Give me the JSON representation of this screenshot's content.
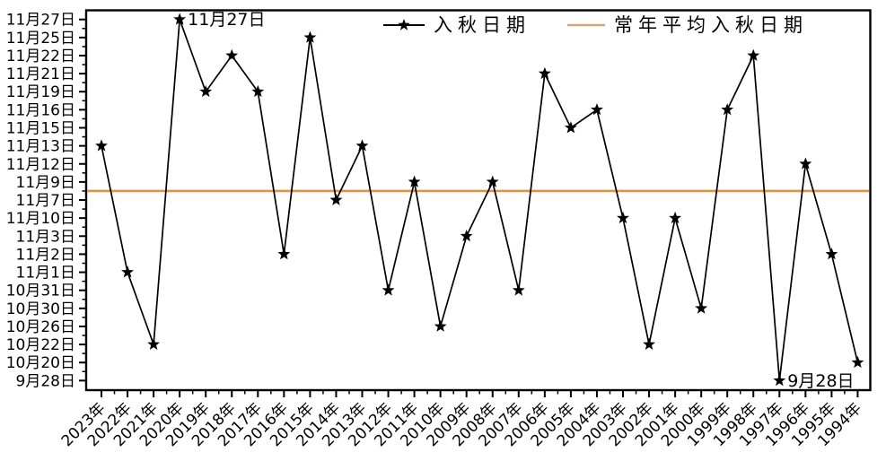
{
  "chart_data": {
    "type": "line",
    "title": "",
    "grid": false,
    "frame": true,
    "x_tick_label_rotation_deg": -45,
    "categories": [
      "2023年",
      "2022年",
      "2021年",
      "2020年",
      "2019年",
      "2018年",
      "2017年",
      "2016年",
      "2015年",
      "2014年",
      "2013年",
      "2012年",
      "2011年",
      "2010年",
      "2009年",
      "2008年",
      "2007年",
      "2006年",
      "2005年",
      "2004年",
      "2003年",
      "2002年",
      "2001年",
      "2000年",
      "1999年",
      "1998年",
      "1997年",
      "1996年",
      "1995年",
      "1994年"
    ],
    "y_axis": {
      "ticks_top_to_bottom": [
        "11月27日",
        "11月25日",
        "11月22日",
        "11月21日",
        "11月19日",
        "11月16日",
        "11月15日",
        "11月13日",
        "11月12日",
        "11月9日",
        "11月7日",
        "11月10日",
        "11月3日",
        "11月2日",
        "11月1日",
        "10月31日",
        "10月30日",
        "10月26日",
        "10月22日",
        "10月20日",
        "9月28日"
      ]
    },
    "series": [
      {
        "name": "入秋日期",
        "marker": "star",
        "color": "#000000",
        "values": [
          "11月13日",
          "11月1日",
          "10月22日",
          "11月27日",
          "11月19日",
          "11月22日",
          "11月19日",
          "11月2日",
          "11月25日",
          "11月7日",
          "11月13日",
          "10月31日",
          "11月9日",
          "10月26日",
          "11月3日",
          "11月9日",
          "10月31日",
          "11月21日",
          "11月15日",
          "11月16日",
          "11月10日",
          "10月22日",
          "11月10日",
          "10月30日",
          "11月16日",
          "11月22日",
          "9月28日",
          "11月12日",
          "11月2日",
          "10月20日"
        ]
      },
      {
        "name": "常年平均入秋日期",
        "style": "horizontal-line",
        "color": "#DF9146",
        "between_ticks": [
          "11月9日",
          "11月7日"
        ]
      }
    ],
    "annotations": [
      {
        "year": "2020年",
        "text": "11月27日"
      },
      {
        "year": "1997年",
        "text": "9月28日"
      }
    ],
    "legend": {
      "position": "top-center-inside",
      "items": [
        {
          "label": "入秋日期",
          "swatch": "line-with-star",
          "color": "#000000"
        },
        {
          "label": "常年平均入秋日期",
          "swatch": "line",
          "color": "#D2A878"
        }
      ]
    }
  }
}
